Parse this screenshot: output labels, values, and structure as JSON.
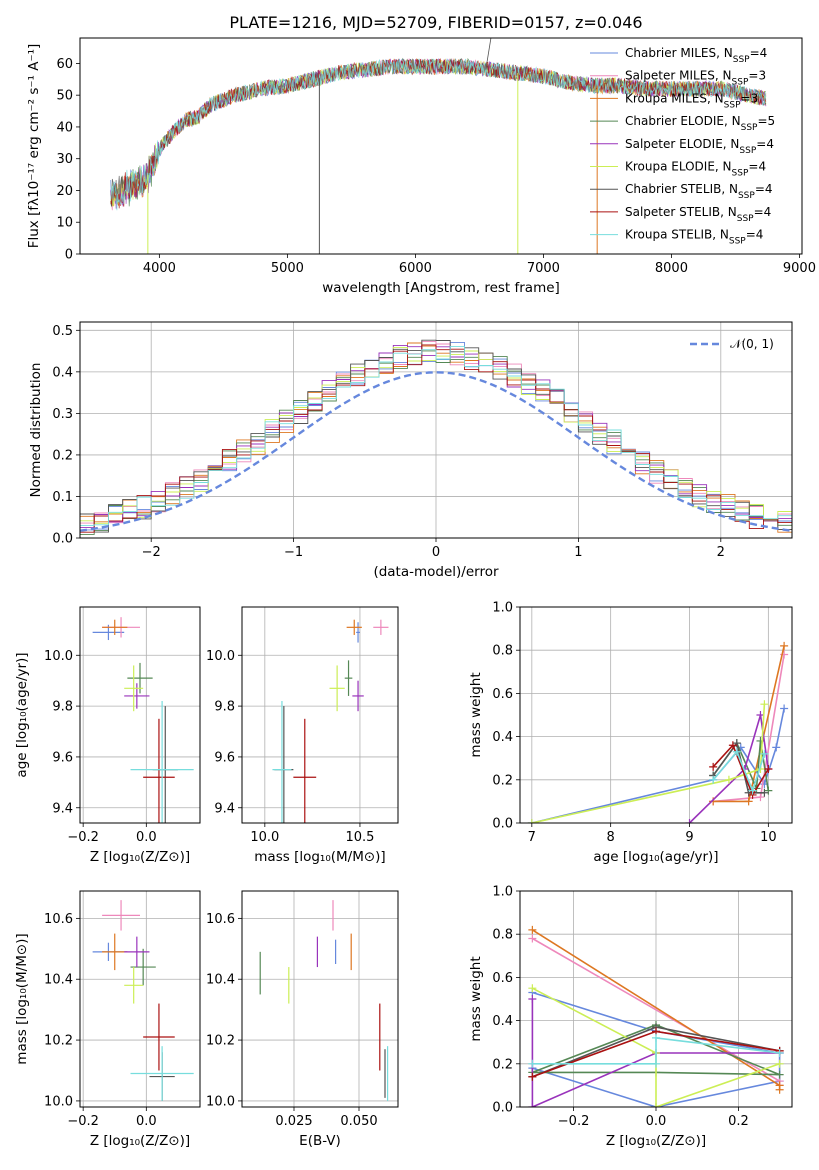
{
  "figure_title": "PLATE=1216, MJD=52709, FIBERID=0157, z=0.046",
  "colors": {
    "CM": "#6688dd",
    "SM": "#ee88bb",
    "KM": "#dd7722",
    "CE": "#558855",
    "SE": "#9933bb",
    "KE": "#ccee55",
    "CS": "#555555",
    "SS": "#aa1111",
    "KS": "#77dddd"
  },
  "chart_data": [
    {
      "id": "spectrum",
      "type": "line",
      "title": "PLATE=1216, MJD=52709, FIBERID=0157, z=0.046",
      "xlabel": "wavelength [Angstrom, rest frame]",
      "ylabel": "Flux [fλ10⁻¹⁷ erg cm⁻² s⁻¹ A⁻¹]",
      "xlim": [
        3380,
        9020
      ],
      "ylim": [
        0,
        68
      ],
      "xticks": [
        4000,
        5000,
        6000,
        7000,
        8000,
        9000
      ],
      "yticks": [
        0,
        10,
        20,
        30,
        40,
        50,
        60
      ],
      "grid": false,
      "legend_position": "right",
      "legend": [
        {
          "key": "CM",
          "label": "Chabrier MILES, N",
          "sub": "SSP",
          "suffix": "=4"
        },
        {
          "key": "SM",
          "label": "Salpeter MILES, N",
          "sub": "SSP",
          "suffix": "=3"
        },
        {
          "key": "KM",
          "label": "Kroupa MILES, N",
          "sub": "SSP",
          "suffix": "=3"
        },
        {
          "key": "CE",
          "label": "Chabrier ELODIE, N",
          "sub": "SSP",
          "suffix": "=5"
        },
        {
          "key": "SE",
          "label": "Salpeter ELODIE, N",
          "sub": "SSP",
          "suffix": "=4"
        },
        {
          "key": "KE",
          "label": "Kroupa ELODIE, N",
          "sub": "SSP",
          "suffix": "=4"
        },
        {
          "key": "CS",
          "label": "Chabrier STELIB, N",
          "sub": "SSP",
          "suffix": "=4"
        },
        {
          "key": "SS",
          "label": "Salpeter STELIB, N",
          "sub": "SSP",
          "suffix": "=4"
        },
        {
          "key": "KS",
          "label": "Kroupa STELIB, N",
          "sub": "SSP",
          "suffix": "=4"
        }
      ],
      "continuum": [
        [
          3620,
          18
        ],
        [
          3700,
          20
        ],
        [
          3800,
          22
        ],
        [
          3900,
          24
        ],
        [
          4000,
          33
        ],
        [
          4100,
          38
        ],
        [
          4200,
          42
        ],
        [
          4300,
          43
        ],
        [
          4400,
          47
        ],
        [
          4600,
          50
        ],
        [
          4800,
          52
        ],
        [
          5000,
          53
        ],
        [
          5200,
          55
        ],
        [
          5400,
          57
        ],
        [
          5600,
          58
        ],
        [
          5800,
          59
        ],
        [
          6000,
          59
        ],
        [
          6200,
          59
        ],
        [
          6400,
          59
        ],
        [
          6600,
          58
        ],
        [
          6800,
          57
        ],
        [
          7000,
          56
        ],
        [
          7200,
          54
        ],
        [
          7400,
          53
        ],
        [
          7600,
          53
        ],
        [
          7800,
          52
        ],
        [
          8000,
          52
        ],
        [
          8200,
          52
        ],
        [
          8400,
          52
        ],
        [
          8600,
          50
        ],
        [
          8740,
          49
        ]
      ],
      "dips": [
        {
          "key": "KE",
          "x": 3910,
          "to": 0
        },
        {
          "key": "CS",
          "x": 5250,
          "to": 0
        },
        {
          "key": "KE",
          "x": 6800,
          "to": 0
        },
        {
          "key": "KM",
          "x": 7420,
          "to": 0
        }
      ],
      "spike": {
        "key": "CS",
        "x": 6590,
        "top": 68
      }
    },
    {
      "id": "residuals",
      "type": "line",
      "xlabel": "(data-model)/error",
      "ylabel": "Normed distribution",
      "xlim": [
        -2.5,
        2.5
      ],
      "ylim": [
        0,
        0.52
      ],
      "xticks": [
        -2,
        -1,
        0,
        1,
        2
      ],
      "yticks": [
        0.0,
        0.1,
        0.2,
        0.3,
        0.4,
        0.5
      ],
      "grid": true,
      "legend_position": "top-right",
      "normal_label": "𝒩(0, 1)",
      "bin_width": 0.1
    },
    {
      "id": "age-vs-Z",
      "type": "scatter",
      "xlabel": "Z [log₁₀(Z/Z⊙)]",
      "ylabel": "age  [log₁₀(age/yr)]",
      "xlim": [
        -0.21,
        0.17
      ],
      "ylim": [
        9.34,
        10.19
      ],
      "xticks": [
        -0.2,
        0.0
      ],
      "yticks": [
        9.4,
        9.6,
        9.8,
        10.0
      ],
      "grid": true,
      "points": [
        {
          "key": "CM",
          "x": -0.12,
          "y": 10.09,
          "xe": 0.05,
          "ye": 0.03
        },
        {
          "key": "SM",
          "x": -0.08,
          "y": 10.11,
          "xe": 0.06,
          "ye": 0.04
        },
        {
          "key": "KM",
          "x": -0.1,
          "y": 10.11,
          "xe": 0.04,
          "ye": 0.03
        },
        {
          "key": "CE",
          "x": -0.02,
          "y": 9.91,
          "xe": 0.04,
          "ye": 0.06
        },
        {
          "key": "SE",
          "x": -0.03,
          "y": 9.84,
          "xe": 0.04,
          "ye": 0.05
        },
        {
          "key": "KE",
          "x": -0.04,
          "y": 9.87,
          "xe": 0.03,
          "ye": 0.09
        },
        {
          "key": "CS",
          "x": 0.06,
          "y": 9.55,
          "xe": 0.04,
          "ye": 0.25
        },
        {
          "key": "SS",
          "x": 0.04,
          "y": 9.52,
          "xe": 0.05,
          "ye": 0.23
        },
        {
          "key": "KS",
          "x": 0.05,
          "y": 9.55,
          "xe": 0.1,
          "ye": 0.27
        }
      ]
    },
    {
      "id": "age-vs-mass",
      "type": "scatter",
      "xlabel": "mass [log₁₀(M/M⊙)]",
      "ylabel": "",
      "xlim": [
        9.88,
        10.7
      ],
      "ylim": [
        9.34,
        10.19
      ],
      "xticks": [
        10.0,
        10.5
      ],
      "yticks": [
        9.4,
        9.6,
        9.8,
        10.0
      ],
      "grid": true,
      "points": [
        {
          "key": "CM",
          "x": 10.49,
          "y": 10.09,
          "xe": 0.01,
          "ye": 0.04
        },
        {
          "key": "SM",
          "x": 10.61,
          "y": 10.11,
          "xe": 0.04,
          "ye": 0.03
        },
        {
          "key": "KM",
          "x": 10.47,
          "y": 10.11,
          "xe": 0.04,
          "ye": 0.03
        },
        {
          "key": "CE",
          "x": 10.44,
          "y": 9.91,
          "xe": 0.02,
          "ye": 0.07
        },
        {
          "key": "SE",
          "x": 10.49,
          "y": 9.84,
          "xe": 0.03,
          "ye": 0.06
        },
        {
          "key": "KE",
          "x": 10.38,
          "y": 9.87,
          "xe": 0.04,
          "ye": 0.09
        },
        {
          "key": "CS",
          "x": 10.1,
          "y": 9.55,
          "xe": 0.05,
          "ye": 0.25
        },
        {
          "key": "SS",
          "x": 10.21,
          "y": 9.52,
          "xe": 0.06,
          "ye": 0.23
        },
        {
          "key": "KS",
          "x": 10.09,
          "y": 9.55,
          "xe": 0.05,
          "ye": 0.27
        }
      ]
    },
    {
      "id": "weight-vs-age",
      "type": "line",
      "xlabel": "age  [log₁₀(age/yr)]",
      "ylabel": "mass weight",
      "xlim": [
        6.85,
        10.3
      ],
      "ylim": [
        0,
        1
      ],
      "xticks": [
        7,
        8,
        9,
        10
      ],
      "yticks": [
        0.0,
        0.2,
        0.4,
        0.6,
        0.8,
        1.0
      ],
      "grid": true,
      "series": [
        {
          "key": "CM",
          "x": [
            7.0,
            9.3,
            9.65,
            9.95,
            10.1,
            10.2
          ],
          "y": [
            0.0,
            0.2,
            0.35,
            0.18,
            0.35,
            0.53
          ]
        },
        {
          "key": "SM",
          "x": [
            9.3,
            9.9,
            10.2
          ],
          "y": [
            0.1,
            0.12,
            0.78
          ]
        },
        {
          "key": "KM",
          "x": [
            9.3,
            9.75,
            10.2
          ],
          "y": [
            0.1,
            0.1,
            0.82
          ]
        },
        {
          "key": "CE",
          "x": [
            9.3,
            9.6,
            9.85,
            9.9,
            10.0
          ],
          "y": [
            0.22,
            0.37,
            0.16,
            0.38,
            0.15
          ]
        },
        {
          "key": "SE",
          "x": [
            9.0,
            9.7,
            9.9,
            10.0
          ],
          "y": [
            0.0,
            0.25,
            0.5,
            0.25
          ]
        },
        {
          "key": "KE",
          "x": [
            7.0,
            9.5,
            9.9,
            9.95
          ],
          "y": [
            0.0,
            0.2,
            0.25,
            0.55
          ]
        },
        {
          "key": "CS",
          "x": [
            9.3,
            9.6,
            9.75,
            9.95
          ],
          "y": [
            0.22,
            0.37,
            0.14,
            0.14
          ]
        },
        {
          "key": "SS",
          "x": [
            9.3,
            9.55,
            9.8,
            10.0
          ],
          "y": [
            0.26,
            0.36,
            0.13,
            0.25
          ]
        },
        {
          "key": "KS",
          "x": [
            9.3,
            9.6,
            9.8,
            9.95
          ],
          "y": [
            0.2,
            0.33,
            0.15,
            0.32
          ]
        }
      ]
    },
    {
      "id": "mass-vs-Z",
      "type": "scatter",
      "xlabel": "Z [log₁₀(Z/Z⊙)]",
      "ylabel": "mass [log₁₀(M/M⊙)]",
      "xlim": [
        -0.21,
        0.17
      ],
      "ylim": [
        9.98,
        10.69
      ],
      "xticks": [
        -0.2,
        0.0
      ],
      "yticks": [
        10.0,
        10.2,
        10.4,
        10.6
      ],
      "grid": true,
      "points": [
        {
          "key": "CM",
          "x": -0.12,
          "y": 10.49,
          "xe": 0.05,
          "ye": 0.03
        },
        {
          "key": "SM",
          "x": -0.08,
          "y": 10.61,
          "xe": 0.06,
          "ye": 0.05
        },
        {
          "key": "KM",
          "x": -0.1,
          "y": 10.49,
          "xe": 0.04,
          "ye": 0.06
        },
        {
          "key": "CE",
          "x": -0.01,
          "y": 10.44,
          "xe": 0.04,
          "ye": 0.06
        },
        {
          "key": "SE",
          "x": -0.03,
          "y": 10.49,
          "xe": 0.04,
          "ye": 0.05
        },
        {
          "key": "KE",
          "x": -0.04,
          "y": 10.38,
          "xe": 0.03,
          "ye": 0.06
        },
        {
          "key": "CS",
          "x": 0.05,
          "y": 10.08,
          "xe": 0.04,
          "ye": 0.08
        },
        {
          "key": "SS",
          "x": 0.04,
          "y": 10.21,
          "xe": 0.05,
          "ye": 0.11
        },
        {
          "key": "KS",
          "x": 0.05,
          "y": 10.09,
          "xe": 0.1,
          "ye": 0.09
        }
      ]
    },
    {
      "id": "mass-vs-EBV",
      "type": "scatter",
      "xlabel": "E(B-V)",
      "ylabel": "",
      "xlim": [
        0.005,
        0.065
      ],
      "ylim": [
        9.98,
        10.69
      ],
      "xticks": [
        0.025,
        0.05
      ],
      "yticks": [
        10.0,
        10.2,
        10.4,
        10.6
      ],
      "grid": true,
      "points": [
        {
          "key": "CM",
          "x": 0.041,
          "y": 10.49,
          "xe": 0.0,
          "ye": 0.04
        },
        {
          "key": "SM",
          "x": 0.04,
          "y": 10.61,
          "xe": 0.0,
          "ye": 0.05
        },
        {
          "key": "KM",
          "x": 0.047,
          "y": 10.49,
          "xe": 0.0,
          "ye": 0.06
        },
        {
          "key": "CE",
          "x": 0.012,
          "y": 10.42,
          "xe": 0.0,
          "ye": 0.07
        },
        {
          "key": "SE",
          "x": 0.034,
          "y": 10.49,
          "xe": 0.0,
          "ye": 0.05
        },
        {
          "key": "KE",
          "x": 0.023,
          "y": 10.38,
          "xe": 0.0,
          "ye": 0.06
        },
        {
          "key": "CS",
          "x": 0.06,
          "y": 10.09,
          "xe": 0.0,
          "ye": 0.08
        },
        {
          "key": "SS",
          "x": 0.058,
          "y": 10.21,
          "xe": 0.0,
          "ye": 0.11
        },
        {
          "key": "KS",
          "x": 0.061,
          "y": 10.09,
          "xe": 0.0,
          "ye": 0.09
        }
      ]
    },
    {
      "id": "weight-vs-Z",
      "type": "line",
      "xlabel": "Z [log₁₀(Z/Z⊙)]",
      "ylabel": "mass weight",
      "xlim": [
        -0.33,
        0.33
      ],
      "ylim": [
        0,
        1
      ],
      "xticks": [
        -0.2,
        0.0,
        0.2
      ],
      "yticks": [
        0.0,
        0.2,
        0.4,
        0.6,
        0.8,
        1.0
      ],
      "grid": true,
      "series": [
        {
          "key": "CM",
          "x": [
            -0.3,
            0.0,
            0.3,
            0.3,
            0.0,
            -0.3
          ],
          "y": [
            0.53,
            0.35,
            0.25,
            0.12,
            0.0,
            0.18
          ]
        },
        {
          "key": "SM",
          "x": [
            -0.3,
            0.3,
            0.3
          ],
          "y": [
            0.78,
            0.12,
            0.1
          ]
        },
        {
          "key": "KM",
          "x": [
            -0.3,
            0.3,
            0.3
          ],
          "y": [
            0.82,
            0.1,
            0.08
          ]
        },
        {
          "key": "CE",
          "x": [
            -0.3,
            0.0,
            0.3,
            0.0,
            -0.3
          ],
          "y": [
            0.16,
            0.38,
            0.15,
            0.16,
            0.16
          ]
        },
        {
          "key": "SE",
          "x": [
            -0.3,
            -0.3,
            0.0,
            0.3
          ],
          "y": [
            0.5,
            0.0,
            0.25,
            0.25
          ]
        },
        {
          "key": "KE",
          "x": [
            -0.3,
            0.0,
            0.0,
            0.3
          ],
          "y": [
            0.55,
            0.25,
            0.0,
            0.2
          ]
        },
        {
          "key": "CS",
          "x": [
            -0.3,
            0.0,
            0.3
          ],
          "y": [
            0.14,
            0.37,
            0.26
          ]
        },
        {
          "key": "SS",
          "x": [
            -0.3,
            0.0,
            0.3
          ],
          "y": [
            0.14,
            0.35,
            0.26
          ]
        },
        {
          "key": "KS",
          "x": [
            -0.3,
            0.0,
            0.0,
            0.3
          ],
          "y": [
            0.2,
            0.2,
            0.32,
            0.25
          ]
        }
      ]
    }
  ]
}
